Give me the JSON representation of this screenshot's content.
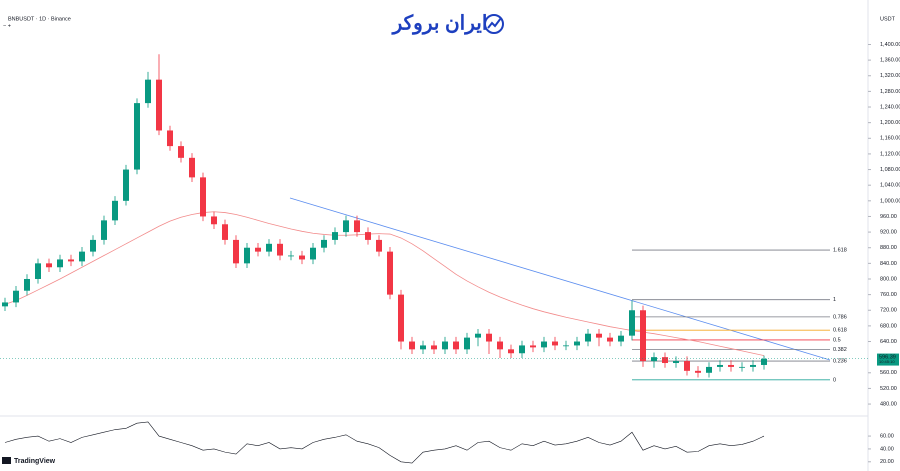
{
  "chart_data": {
    "type": "candlestick",
    "title": "BNBUSDT · 1D · Binance",
    "currency": "USDT",
    "brand": "ایران بروکر",
    "platform": "TradingView",
    "up_color": "#089981",
    "down_color": "#f23645",
    "open": [
      730,
      740,
      770,
      800,
      840,
      830,
      850,
      845,
      870,
      900,
      950,
      1000,
      1080,
      1250,
      1310,
      1180,
      1140,
      1110,
      1060,
      960,
      940,
      900,
      840,
      880,
      870,
      890,
      860,
      860,
      850,
      880,
      900,
      920,
      950,
      920,
      900,
      870,
      760,
      640,
      620,
      630,
      620,
      640,
      620,
      650,
      660,
      640,
      620,
      610,
      630,
      625,
      640,
      630,
      630,
      640,
      660,
      650,
      640,
      655,
      720,
      590,
      600,
      585,
      590,
      565,
      560,
      575,
      580,
      575,
      575,
      580
    ],
    "high": [
      752,
      782,
      812,
      852,
      852,
      862,
      862,
      882,
      912,
      962,
      1012,
      1092,
      1262,
      1330,
      1375,
      1192,
      1152,
      1122,
      1072,
      972,
      952,
      912,
      892,
      892,
      902,
      902,
      872,
      872,
      892,
      912,
      932,
      962,
      962,
      932,
      912,
      882,
      772,
      652,
      642,
      642,
      652,
      652,
      662,
      672,
      672,
      652,
      632,
      642,
      642,
      652,
      652,
      642,
      652,
      672,
      672,
      662,
      667,
      745,
      732,
      612,
      612,
      602,
      602,
      577,
      587,
      592,
      592,
      587,
      592,
      604
    ],
    "low": [
      718,
      728,
      758,
      788,
      818,
      818,
      833,
      833,
      858,
      888,
      938,
      988,
      1068,
      1238,
      1168,
      1128,
      1098,
      1048,
      948,
      928,
      888,
      828,
      828,
      858,
      858,
      848,
      848,
      838,
      838,
      868,
      888,
      908,
      908,
      888,
      858,
      748,
      620,
      608,
      608,
      608,
      608,
      608,
      608,
      628,
      608,
      598,
      598,
      598,
      613,
      613,
      618,
      618,
      618,
      628,
      628,
      628,
      628,
      643,
      575,
      573,
      573,
      573,
      553,
      548,
      548,
      563,
      563,
      563,
      563,
      568
    ],
    "close": [
      740,
      770,
      800,
      840,
      830,
      850,
      845,
      870,
      900,
      950,
      1000,
      1080,
      1250,
      1310,
      1180,
      1140,
      1110,
      1060,
      960,
      940,
      900,
      840,
      880,
      870,
      890,
      860,
      860,
      850,
      880,
      900,
      920,
      950,
      920,
      900,
      870,
      760,
      640,
      620,
      630,
      620,
      640,
      620,
      650,
      660,
      640,
      620,
      610,
      630,
      625,
      640,
      630,
      630,
      640,
      660,
      650,
      640,
      655,
      720,
      590,
      600,
      585,
      590,
      565,
      560,
      575,
      580,
      575,
      575,
      580,
      596
    ],
    "ma": {
      "color": "#f28b8b",
      "values": [
        735,
        745,
        758,
        772,
        786,
        800,
        815,
        830,
        845,
        860,
        875,
        890,
        905,
        920,
        935,
        948,
        958,
        965,
        970,
        972,
        970,
        965,
        958,
        950,
        942,
        935,
        928,
        922,
        917,
        914,
        912,
        912,
        913,
        915,
        916,
        915,
        905,
        890,
        872,
        852,
        832,
        812,
        795,
        780,
        766,
        754,
        743,
        733,
        724,
        716,
        709,
        702,
        696,
        690,
        684,
        678,
        673,
        668,
        664,
        660,
        655,
        650,
        645,
        640,
        634,
        628,
        622,
        616,
        610,
        604
      ]
    },
    "ylim": [
      452,
      1478
    ],
    "yticks": [
      {
        "value": 1400,
        "label": "1,400.00"
      },
      {
        "value": 1360,
        "label": "1,360.00"
      },
      {
        "value": 1320,
        "label": "1,320.00"
      },
      {
        "value": 1280,
        "label": "1,280.00"
      },
      {
        "value": 1240,
        "label": "1,240.00"
      },
      {
        "value": 1200,
        "label": "1,200.00"
      },
      {
        "value": 1160,
        "label": "1,160.00"
      },
      {
        "value": 1120,
        "label": "1,120.00"
      },
      {
        "value": 1080,
        "label": "1,080.00"
      },
      {
        "value": 1040,
        "label": "1,040.00"
      },
      {
        "value": 1000,
        "label": "1,000.00"
      },
      {
        "value": 960,
        "label": "960.00"
      },
      {
        "value": 920,
        "label": "920.00"
      },
      {
        "value": 880,
        "label": "880.00"
      },
      {
        "value": 840,
        "label": "840.00"
      },
      {
        "value": 800,
        "label": "800.00"
      },
      {
        "value": 760,
        "label": "760.00"
      },
      {
        "value": 720,
        "label": "720.00"
      },
      {
        "value": 680,
        "label": "680.00"
      },
      {
        "value": 640,
        "label": "640.00"
      },
      {
        "value": 560,
        "label": "560.00"
      },
      {
        "value": 520,
        "label": "520.00"
      },
      {
        "value": 480,
        "label": "480.00"
      }
    ],
    "last_price": {
      "value": 596.39,
      "timer": "10:45:10"
    },
    "fib": [
      {
        "label": "1.618",
        "price": 874,
        "color": "#787b86"
      },
      {
        "label": "1",
        "price": 747,
        "color": "#787b86"
      },
      {
        "label": "0.786",
        "price": 703,
        "color": "#787b86"
      },
      {
        "label": "0.618",
        "price": 669,
        "color": "#f5a623"
      },
      {
        "label": "0.5",
        "price": 644,
        "color": "#f23645"
      },
      {
        "label": "0.382",
        "price": 620,
        "color": "#787b86"
      },
      {
        "label": "0.236",
        "price": 590,
        "color": "#787b86"
      },
      {
        "label": "0",
        "price": 542,
        "color": "#26a69a"
      }
    ],
    "rsi": {
      "color": "#131722",
      "ylim": [
        15,
        85
      ],
      "yticks": [
        {
          "value": 60,
          "label": "60.00"
        },
        {
          "value": 40,
          "label": "40.00"
        },
        {
          "value": 20,
          "label": "20.00"
        }
      ],
      "values": [
        50,
        55,
        58,
        60,
        52,
        56,
        50,
        58,
        62,
        66,
        70,
        72,
        80,
        82,
        60,
        55,
        50,
        45,
        38,
        40,
        35,
        32,
        48,
        45,
        50,
        40,
        42,
        40,
        50,
        55,
        58,
        62,
        52,
        48,
        42,
        30,
        20,
        18,
        35,
        38,
        40,
        45,
        38,
        50,
        52,
        42,
        38,
        48,
        45,
        52,
        46,
        48,
        52,
        58,
        50,
        46,
        52,
        66,
        38,
        45,
        40,
        44,
        35,
        36,
        45,
        48,
        45,
        47,
        52,
        60
      ]
    }
  }
}
